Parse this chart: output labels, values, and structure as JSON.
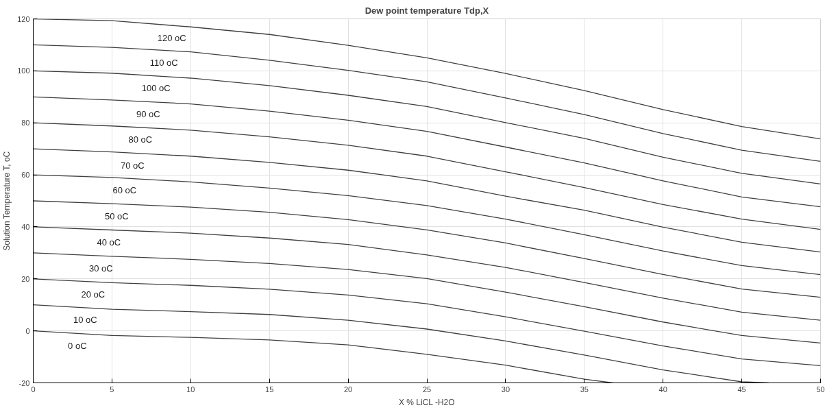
{
  "chart_data": {
    "type": "line",
    "title": "Dew point temperature Tdp,X",
    "xlabel": "X % LiCL -H2O",
    "ylabel": "Solution Temperature T, oC",
    "x": [
      0,
      5,
      10,
      15,
      20,
      25,
      30,
      35,
      40,
      45,
      50
    ],
    "series": [
      {
        "name": "120 oC",
        "color": "#404040",
        "values": [
          120,
          119.3,
          116.9,
          114.0,
          109.8,
          105.0,
          99.0,
          92.4,
          85.1,
          78.6,
          73.8
        ]
      },
      {
        "name": "110 oC",
        "color": "#404040",
        "values": [
          110,
          109.0,
          107.3,
          104.1,
          100.2,
          95.8,
          89.6,
          83.2,
          75.9,
          69.5,
          65.2
        ]
      },
      {
        "name": "100 oC",
        "color": "#404040",
        "values": [
          100,
          99.1,
          97.2,
          94.3,
          90.6,
          86.3,
          80.1,
          74.0,
          66.8,
          60.6,
          56.5
        ]
      },
      {
        "name": "90 oC",
        "color": "#404040",
        "values": [
          90,
          88.8,
          87.3,
          84.5,
          81.0,
          76.7,
          70.7,
          64.6,
          57.7,
          51.5,
          47.7
        ]
      },
      {
        "name": "80 oC",
        "color": "#404040",
        "values": [
          80,
          78.8,
          77.2,
          74.6,
          71.4,
          67.2,
          61.2,
          55.1,
          48.6,
          43.0,
          39.0
        ]
      },
      {
        "name": "70 oC",
        "color": "#404040",
        "values": [
          70,
          68.8,
          67.2,
          64.8,
          61.8,
          57.7,
          51.8,
          46.4,
          39.9,
          34.1,
          30.3
        ]
      },
      {
        "name": "60 oC",
        "color": "#404040",
        "values": [
          60,
          59.0,
          57.3,
          54.9,
          52.0,
          48.2,
          43.0,
          37.0,
          30.7,
          25.1,
          21.6
        ]
      },
      {
        "name": "50 oC",
        "color": "#404040",
        "values": [
          50,
          48.9,
          47.6,
          45.6,
          42.8,
          38.8,
          33.8,
          27.8,
          21.7,
          16.1,
          12.9
        ]
      },
      {
        "name": "40 oC",
        "color": "#404040",
        "values": [
          40,
          38.8,
          37.6,
          35.7,
          33.2,
          29.2,
          24.4,
          18.6,
          12.6,
          7.2,
          4.1
        ]
      },
      {
        "name": "30 oC",
        "color": "#404040",
        "values": [
          30,
          28.7,
          27.5,
          25.9,
          23.6,
          20.1,
          14.9,
          9.3,
          3.4,
          -1.8,
          -4.7
        ]
      },
      {
        "name": "20 oC",
        "color": "#404040",
        "values": [
          20,
          18.5,
          17.5,
          16.0,
          13.8,
          10.4,
          5.4,
          -0.1,
          -5.8,
          -10.8,
          -13.4
        ]
      },
      {
        "name": "10 oC",
        "color": "#404040",
        "x": [
          0,
          5,
          10,
          15,
          20,
          25,
          30,
          35,
          40,
          45,
          46.7
        ],
        "values": [
          10,
          8.3,
          7.4,
          6.3,
          4.1,
          0.7,
          -3.9,
          -9.3,
          -15.0,
          -19.6,
          -20
        ]
      },
      {
        "name": "0 oC",
        "color": "#404040",
        "x": [
          0,
          5,
          10,
          15,
          20,
          25,
          30,
          35,
          36.8
        ],
        "values": [
          0,
          -1.8,
          -2.5,
          -3.5,
          -5.4,
          -9.0,
          -13.2,
          -18.6,
          -20
        ]
      }
    ],
    "xlim": [
      0,
      50
    ],
    "ylim": [
      -20,
      120
    ],
    "xticks": [
      0,
      5,
      10,
      15,
      20,
      25,
      30,
      35,
      40,
      45,
      50
    ],
    "yticks": [
      -20,
      0,
      20,
      40,
      60,
      80,
      100,
      120
    ],
    "grid": true,
    "line_style": "solid"
  }
}
